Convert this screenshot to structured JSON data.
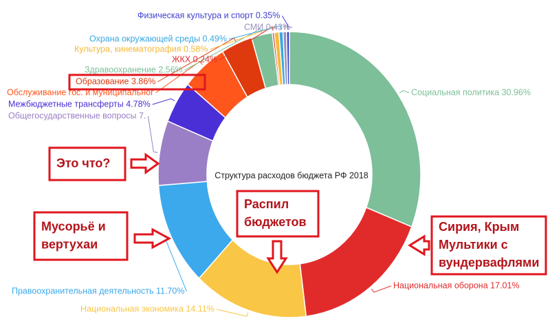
{
  "chart_data": {
    "type": "pie",
    "title": "Структура расходов бюджета РФ 2018",
    "labels": [
      "Социальная политика 30.96%",
      "Национальная оборона 17.01%",
      "Национальная экономика 14.11%",
      "Правоохранительная деятельность 11.70%",
      "Общегосударственные вопросы 7.",
      "Межбюджетные трансферты 4.78%",
      "Обслуживание гос. и муниципальног",
      "Образование 3.86%",
      "Здравоохранение 2.56%",
      "ЖКХ 0.24%",
      "Культура, кинематография 0.58%",
      "Охрана окружающей среды 0.49%",
      "СМИ 0.43%",
      "Физическая культура и спорт 0.35%"
    ],
    "values": [
      30.96,
      17.01,
      14.11,
      11.7,
      7.32,
      4.78,
      5.61,
      3.86,
      2.56,
      0.24,
      0.58,
      0.49,
      0.43,
      0.35
    ],
    "colors": [
      "#7cbf99",
      "#e12b2b",
      "#f9c646",
      "#3ba9ec",
      "#9a7fc6",
      "#4b2fd6",
      "#ff561c",
      "#de3a0e",
      "#7cbf99",
      "#e3302e",
      "#f6b93a",
      "#39a8e4",
      "#9a8fc0",
      "#3f3fd0"
    ]
  },
  "annotations": [
    {
      "lines": [
        "Это что?"
      ]
    },
    {
      "lines": [
        "Мусорьё и",
        "вертухаи"
      ]
    },
    {
      "lines": [
        "Распил",
        "бюджетов"
      ]
    },
    {
      "lines": [
        "Сирия, Крым",
        "Мультики с",
        "вундервафлями"
      ]
    }
  ]
}
